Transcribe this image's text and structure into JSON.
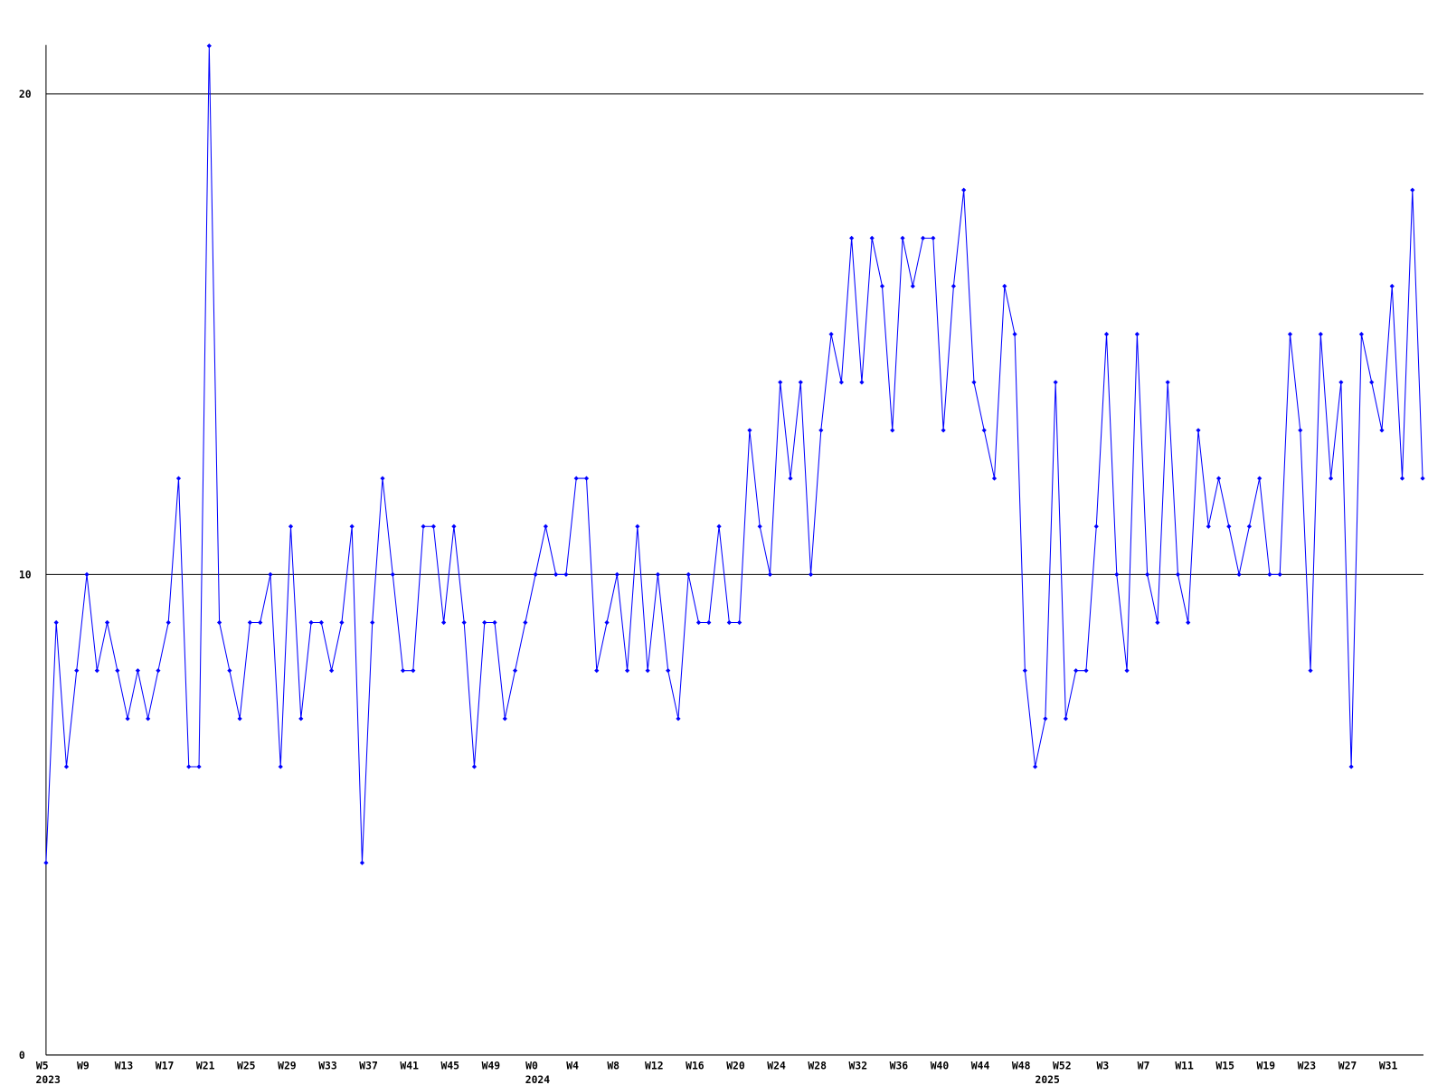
{
  "chart_data": {
    "type": "line",
    "categories": [
      "W5",
      null,
      null,
      null,
      "W9",
      null,
      null,
      null,
      "W13",
      null,
      null,
      null,
      "W17",
      null,
      null,
      null,
      "W21",
      null,
      null,
      null,
      "W25",
      null,
      null,
      null,
      "W29",
      null,
      null,
      null,
      "W33",
      null,
      null,
      null,
      "W37",
      null,
      null,
      null,
      "W41",
      null,
      null,
      null,
      "W45",
      null,
      null,
      null,
      "W49",
      null,
      null,
      null,
      "W0",
      null,
      null,
      null,
      "W4",
      null,
      null,
      null,
      "W8",
      null,
      null,
      null,
      "W12",
      null,
      null,
      null,
      "W16",
      null,
      null,
      null,
      "W20",
      null,
      null,
      null,
      "W24",
      null,
      null,
      null,
      "W28",
      null,
      null,
      null,
      "W32",
      null,
      null,
      null,
      "W36",
      null,
      null,
      null,
      "W40",
      null,
      null,
      null,
      "W44",
      null,
      null,
      null,
      "W48",
      null,
      null,
      null,
      "W52",
      null,
      null,
      null,
      "W3",
      null,
      null,
      null,
      "W7",
      null,
      null,
      null,
      "W11",
      null,
      null,
      null,
      "W15",
      null,
      null,
      null,
      "W19",
      null,
      null,
      null,
      "W23",
      null,
      null,
      null,
      "W27",
      null,
      null,
      null,
      "W31",
      null,
      null,
      null
    ],
    "year_labels": [
      "2023",
      null,
      null,
      null,
      null,
      null,
      null,
      null,
      null,
      null,
      null,
      null,
      null,
      null,
      null,
      null,
      null,
      null,
      null,
      null,
      null,
      null,
      null,
      null,
      null,
      null,
      null,
      null,
      null,
      null,
      null,
      null,
      null,
      null,
      null,
      null,
      null,
      null,
      null,
      null,
      null,
      null,
      null,
      null,
      null,
      null,
      null,
      null,
      "2024",
      null,
      null,
      null,
      null,
      null,
      null,
      null,
      null,
      null,
      null,
      null,
      null,
      null,
      null,
      null,
      null,
      null,
      null,
      null,
      null,
      null,
      null,
      null,
      null,
      null,
      null,
      null,
      null,
      null,
      null,
      null,
      null,
      null,
      null,
      null,
      null,
      null,
      null,
      null,
      null,
      null,
      null,
      null,
      null,
      null,
      null,
      null,
      null,
      null,
      "2025",
      null,
      null,
      null,
      null,
      null,
      null,
      null,
      null,
      null,
      null,
      null,
      null,
      null,
      null,
      null,
      null,
      null,
      null,
      null,
      null,
      null,
      null,
      null,
      null,
      null,
      null,
      null,
      null,
      null,
      null,
      null,
      null,
      null,
      null,
      null
    ],
    "values": [
      4,
      9,
      6,
      8,
      10,
      8,
      9,
      8,
      7,
      8,
      7,
      8,
      9,
      12,
      6,
      6,
      21,
      9,
      8,
      7,
      9,
      9,
      10,
      6,
      11,
      7,
      9,
      9,
      8,
      9,
      11,
      4,
      9,
      12,
      10,
      8,
      8,
      11,
      11,
      9,
      11,
      9,
      6,
      9,
      9,
      7,
      8,
      9,
      10,
      11,
      10,
      10,
      12,
      12,
      8,
      9,
      10,
      8,
      11,
      8,
      10,
      8,
      7,
      10,
      9,
      9,
      11,
      9,
      9,
      13,
      11,
      10,
      14,
      12,
      14,
      10,
      13,
      15,
      14,
      17,
      14,
      17,
      16,
      13,
      17,
      16,
      17,
      17,
      13,
      16,
      18,
      14,
      13,
      12,
      16,
      15,
      8,
      6,
      7,
      14,
      7,
      8,
      8,
      11,
      15,
      10,
      8,
      15,
      10,
      9,
      14,
      10,
      9,
      13,
      11,
      12,
      11,
      10,
      11,
      12,
      10,
      10,
      15,
      13,
      8,
      15,
      12,
      14,
      6,
      15,
      14,
      13,
      16,
      12,
      18,
      12
    ],
    "color": "#0000ff",
    "ylim": [
      0,
      21
    ],
    "yticks": [
      0,
      10,
      20
    ],
    "grid": true
  }
}
